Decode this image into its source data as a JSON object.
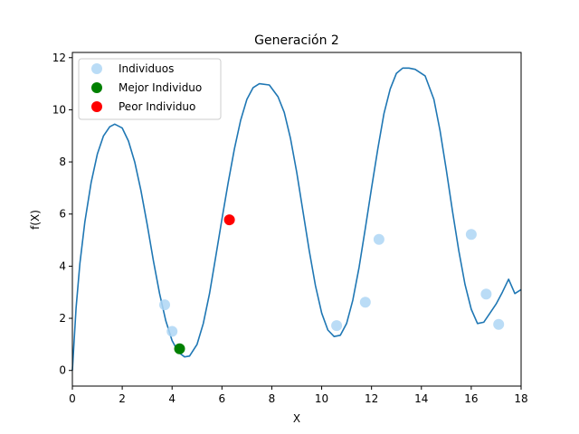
{
  "chart_data": {
    "type": "scatter",
    "title": "Generación 2",
    "xlabel": "X",
    "ylabel": "f(X)",
    "xlim": [
      0,
      18
    ],
    "ylim": [
      -0.6,
      12.2
    ],
    "xticks": [
      0,
      2,
      4,
      6,
      8,
      10,
      12,
      14,
      16,
      18
    ],
    "yticks": [
      0,
      2,
      4,
      6,
      8,
      10,
      12
    ],
    "grid": false,
    "legend_position": "top-left",
    "curve": {
      "color": "#1f77b4",
      "x": [
        0.0,
        0.15,
        0.3,
        0.5,
        0.75,
        1.0,
        1.25,
        1.5,
        1.7,
        2.0,
        2.25,
        2.5,
        2.75,
        3.0,
        3.25,
        3.5,
        3.75,
        4.0,
        4.25,
        4.5,
        4.7,
        5.0,
        5.25,
        5.5,
        5.75,
        6.0,
        6.25,
        6.5,
        6.75,
        7.0,
        7.25,
        7.5,
        7.9,
        8.25,
        8.5,
        8.75,
        9.0,
        9.25,
        9.5,
        9.75,
        10.0,
        10.25,
        10.5,
        10.75,
        11.0,
        11.25,
        11.5,
        11.75,
        12.0,
        12.25,
        12.5,
        12.75,
        13.0,
        13.25,
        13.5,
        13.75,
        14.15,
        14.5,
        14.75,
        15.0,
        15.25,
        15.5,
        15.75,
        16.0,
        16.25,
        16.5,
        16.75,
        17.0,
        17.25,
        17.5,
        17.75,
        18.0
      ],
      "y": [
        0.0,
        2.4,
        4.1,
        5.7,
        7.2,
        8.3,
        9.0,
        9.35,
        9.45,
        9.3,
        8.8,
        8.0,
        6.9,
        5.6,
        4.2,
        2.95,
        1.9,
        1.15,
        0.7,
        0.52,
        0.55,
        1.0,
        1.8,
        2.95,
        4.35,
        5.8,
        7.2,
        8.5,
        9.6,
        10.4,
        10.85,
        11.0,
        10.95,
        10.5,
        9.9,
        8.9,
        7.6,
        6.1,
        4.6,
        3.25,
        2.2,
        1.55,
        1.3,
        1.35,
        1.8,
        2.7,
        3.95,
        5.45,
        7.0,
        8.5,
        9.85,
        10.8,
        11.4,
        11.6,
        11.6,
        11.55,
        11.3,
        10.4,
        9.2,
        7.7,
        6.1,
        4.6,
        3.3,
        2.35,
        1.8,
        1.85,
        2.2,
        2.55,
        3.0,
        3.5,
        2.95,
        3.1
      ]
    },
    "series": [
      {
        "name": "Individuos",
        "color": "#aed6f5",
        "x": [
          3.7,
          4.0,
          10.6,
          11.75,
          12.3,
          16.0,
          16.6,
          17.1
        ],
        "y": [
          2.52,
          1.5,
          1.72,
          2.62,
          5.03,
          5.22,
          2.93,
          1.77
        ]
      },
      {
        "name": "Mejor Individuo",
        "color": "#008000",
        "x": [
          4.3
        ],
        "y": [
          0.83
        ]
      },
      {
        "name": "Peor Individuo",
        "color": "#ff0000",
        "x": [
          6.3
        ],
        "y": [
          5.78
        ]
      }
    ]
  }
}
